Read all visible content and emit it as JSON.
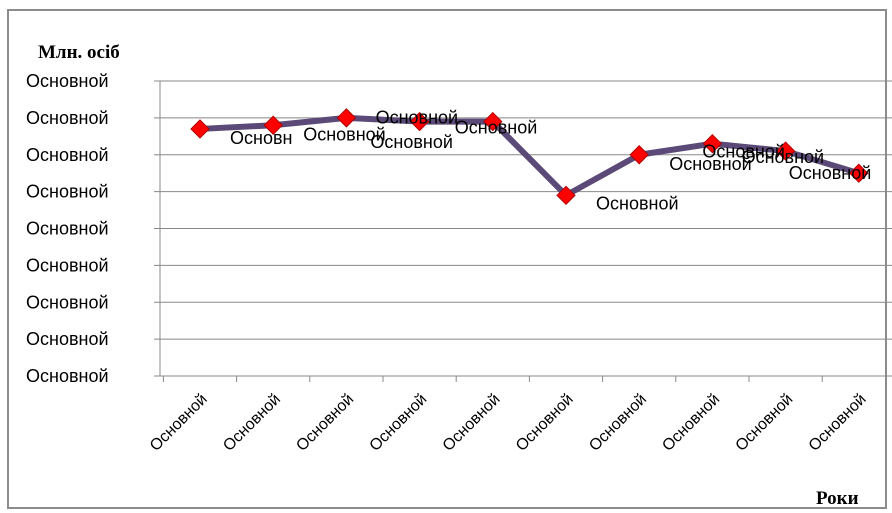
{
  "chart_data": {
    "type": "line",
    "ylabel": "Млн. осіб",
    "xlabel": "Роки",
    "categories": [
      "Основной",
      "Основной",
      "Основной",
      "Основной",
      "Основной",
      "Основной",
      "Основной",
      "Основной",
      "Основной",
      "Основной"
    ],
    "y_tick_labels": [
      "Основной",
      "Основной",
      "Основной",
      "Основной",
      "Основной",
      "Основной",
      "Основной",
      "Основной",
      "Основной"
    ],
    "ylim": [
      0,
      8
    ],
    "grid": true,
    "legend": "none",
    "series": [
      {
        "values": [
          6.7,
          6.8,
          7.0,
          6.9,
          6.9,
          4.9,
          6.0,
          6.3,
          6.1,
          5.5
        ],
        "data_labels": [
          "Основн",
          "Основной",
          "Основной",
          "Основной",
          "Основной",
          "Основной",
          "Основной",
          "Основной",
          "Основной",
          "Основной"
        ]
      }
    ],
    "colors": {
      "line": "#5b4a78",
      "marker": "#ff0000",
      "grid": "#888888"
    }
  }
}
